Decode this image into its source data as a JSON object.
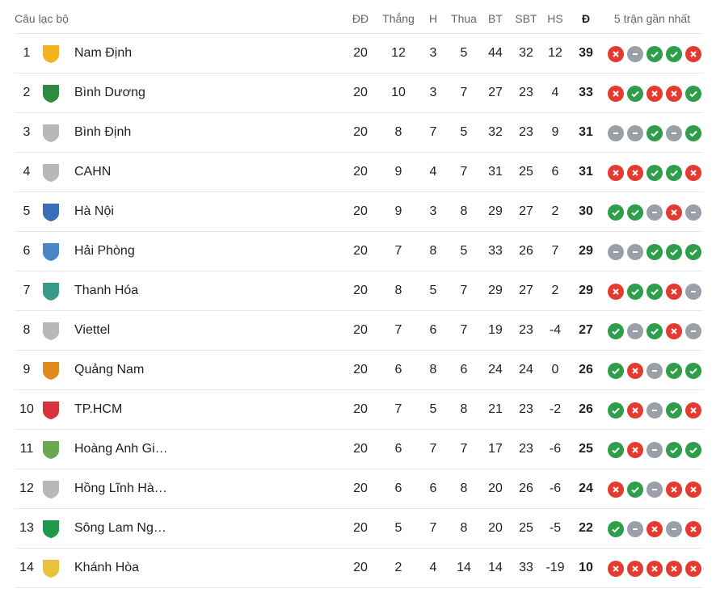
{
  "header": {
    "club": "Câu lạc bộ",
    "played": "ĐĐ",
    "won": "Thắng",
    "drawn": "H",
    "lost": "Thua",
    "gf": "BT",
    "ga": "SBT",
    "gd": "HS",
    "pts": "Đ",
    "form": "5 trận gần nhất"
  },
  "colors": {
    "win": "#2e9e4a",
    "loss": "#e53a2f",
    "draw": "#9aa0a8"
  },
  "rows": [
    {
      "pos": "1",
      "name": "Nam Định",
      "played": "20",
      "won": "12",
      "drawn": "3",
      "lost": "5",
      "gf": "44",
      "ga": "32",
      "gd": "12",
      "pts": "39",
      "form": [
        "L",
        "D",
        "W",
        "W",
        "L"
      ],
      "logo": "#f2b320"
    },
    {
      "pos": "2",
      "name": "Bình Dương",
      "played": "20",
      "won": "10",
      "drawn": "3",
      "lost": "7",
      "gf": "27",
      "ga": "23",
      "gd": "4",
      "pts": "33",
      "form": [
        "L",
        "W",
        "L",
        "L",
        "W"
      ],
      "logo": "#2e8b3e"
    },
    {
      "pos": "3",
      "name": "Bình Định",
      "played": "20",
      "won": "8",
      "drawn": "7",
      "lost": "5",
      "gf": "32",
      "ga": "23",
      "gd": "9",
      "pts": "31",
      "form": [
        "D",
        "D",
        "W",
        "D",
        "W"
      ],
      "logo": "#b8b8b8"
    },
    {
      "pos": "4",
      "name": "CAHN",
      "played": "20",
      "won": "9",
      "drawn": "4",
      "lost": "7",
      "gf": "31",
      "ga": "25",
      "gd": "6",
      "pts": "31",
      "form": [
        "L",
        "L",
        "W",
        "W",
        "L"
      ],
      "logo": "#b8b8b8"
    },
    {
      "pos": "5",
      "name": "Hà Nội",
      "played": "20",
      "won": "9",
      "drawn": "3",
      "lost": "8",
      "gf": "29",
      "ga": "27",
      "gd": "2",
      "pts": "30",
      "form": [
        "W",
        "W",
        "D",
        "L",
        "D"
      ],
      "logo": "#3a6fb5"
    },
    {
      "pos": "6",
      "name": "Hải Phòng",
      "played": "20",
      "won": "7",
      "drawn": "8",
      "lost": "5",
      "gf": "33",
      "ga": "26",
      "gd": "7",
      "pts": "29",
      "form": [
        "D",
        "D",
        "W",
        "W",
        "W"
      ],
      "logo": "#4a86c5"
    },
    {
      "pos": "7",
      "name": "Thanh Hóa",
      "played": "20",
      "won": "8",
      "drawn": "5",
      "lost": "7",
      "gf": "29",
      "ga": "27",
      "gd": "2",
      "pts": "29",
      "form": [
        "L",
        "W",
        "W",
        "L",
        "D"
      ],
      "logo": "#3a9a8a"
    },
    {
      "pos": "8",
      "name": "Viettel",
      "played": "20",
      "won": "7",
      "drawn": "6",
      "lost": "7",
      "gf": "19",
      "ga": "23",
      "gd": "-4",
      "pts": "27",
      "form": [
        "W",
        "D",
        "W",
        "L",
        "D"
      ],
      "logo": "#b8b8b8"
    },
    {
      "pos": "9",
      "name": "Quảng Nam",
      "played": "20",
      "won": "6",
      "drawn": "8",
      "lost": "6",
      "gf": "24",
      "ga": "24",
      "gd": "0",
      "pts": "26",
      "form": [
        "W",
        "L",
        "D",
        "W",
        "W"
      ],
      "logo": "#e08a1e"
    },
    {
      "pos": "10",
      "name": "TP.HCM",
      "played": "20",
      "won": "7",
      "drawn": "5",
      "lost": "8",
      "gf": "21",
      "ga": "23",
      "gd": "-2",
      "pts": "26",
      "form": [
        "W",
        "L",
        "D",
        "W",
        "L"
      ],
      "logo": "#d8333a"
    },
    {
      "pos": "11",
      "name": "Hoàng Anh Gi…",
      "played": "20",
      "won": "6",
      "drawn": "7",
      "lost": "7",
      "gf": "17",
      "ga": "23",
      "gd": "-6",
      "pts": "25",
      "form": [
        "W",
        "L",
        "D",
        "W",
        "W"
      ],
      "logo": "#6aa84f"
    },
    {
      "pos": "12",
      "name": "Hồng Lĩnh Hà…",
      "played": "20",
      "won": "6",
      "drawn": "6",
      "lost": "8",
      "gf": "20",
      "ga": "26",
      "gd": "-6",
      "pts": "24",
      "form": [
        "L",
        "W",
        "D",
        "L",
        "L"
      ],
      "logo": "#b8b8b8"
    },
    {
      "pos": "13",
      "name": "Sông Lam Ng…",
      "played": "20",
      "won": "5",
      "drawn": "7",
      "lost": "8",
      "gf": "20",
      "ga": "25",
      "gd": "-5",
      "pts": "22",
      "form": [
        "W",
        "D",
        "L",
        "D",
        "L"
      ],
      "logo": "#1f9a4a"
    },
    {
      "pos": "14",
      "name": "Khánh Hòa",
      "played": "20",
      "won": "2",
      "drawn": "4",
      "lost": "14",
      "gf": "14",
      "ga": "33",
      "gd": "-19",
      "pts": "10",
      "form": [
        "L",
        "L",
        "L",
        "L",
        "L"
      ],
      "logo": "#e8c23a"
    }
  ]
}
